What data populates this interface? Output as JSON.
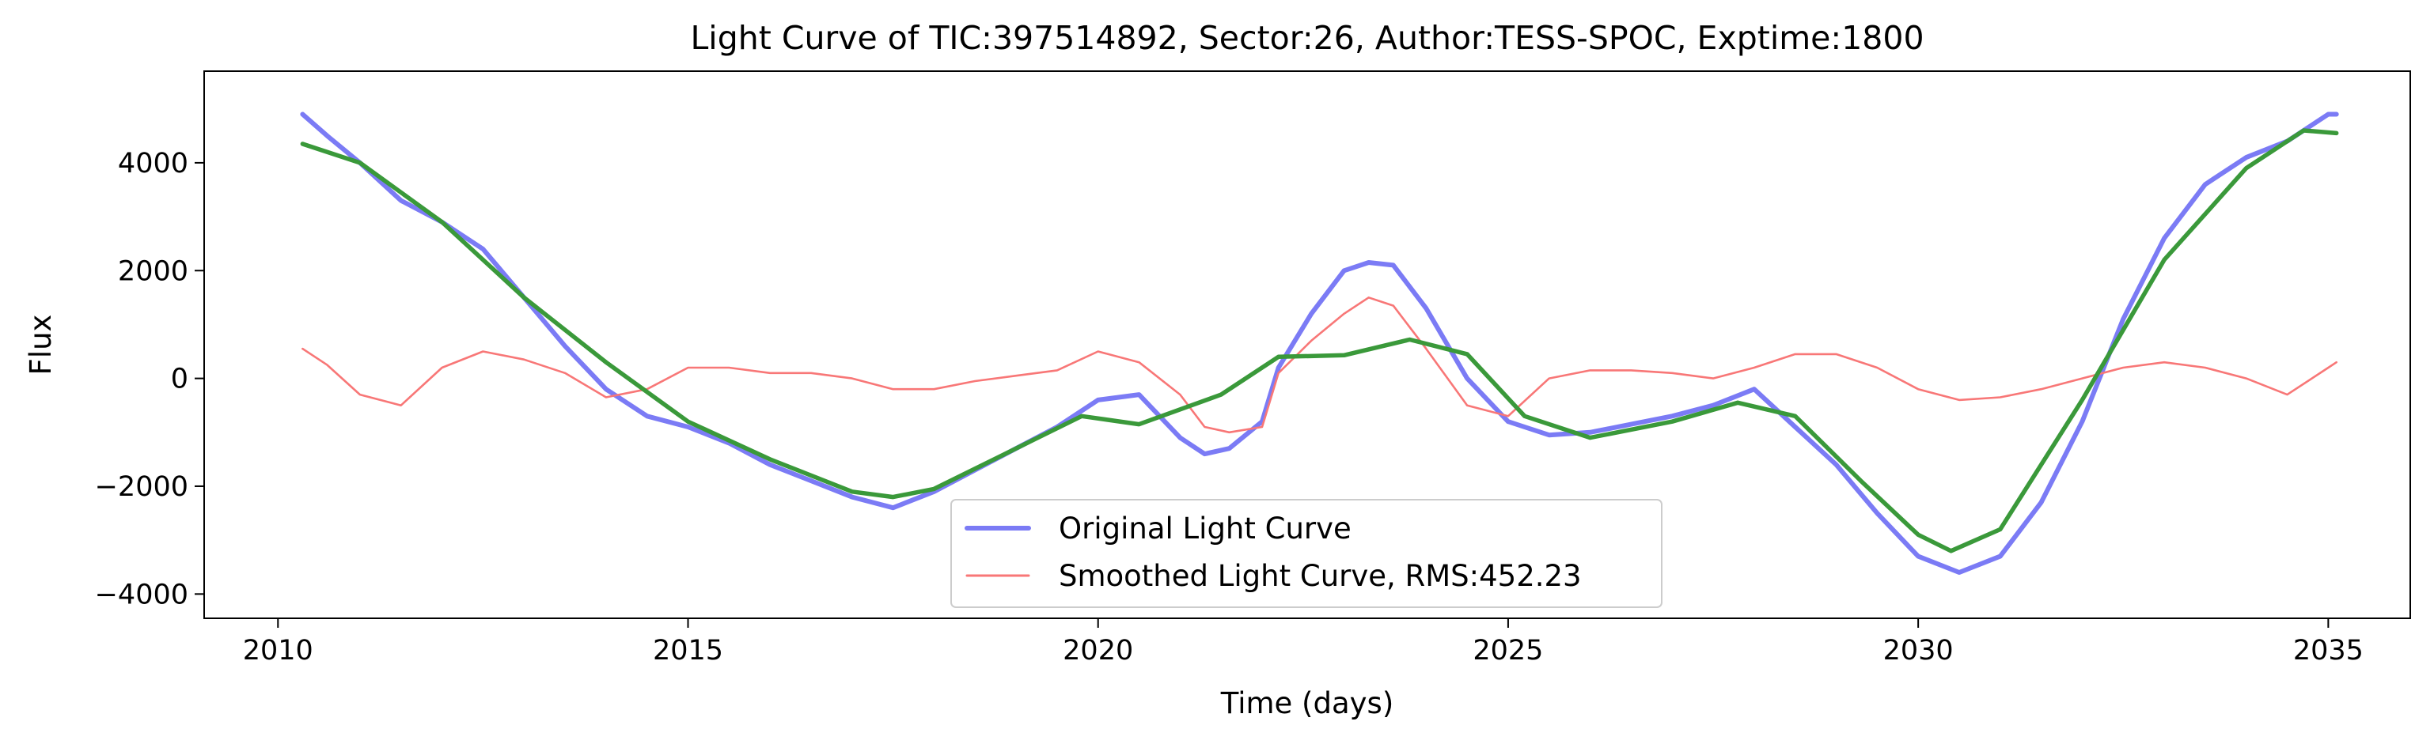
{
  "chart_data": {
    "type": "line",
    "title": "Light Curve of TIC:397514892, Sector:26, Author:TESS-SPOC, Exptime:1800",
    "xlabel": "Time (days)",
    "ylabel": "Flux",
    "xlim": [
      2009.1,
      2036.0
    ],
    "ylim": [
      -4450,
      5700
    ],
    "xticks": [
      2010,
      2015,
      2020,
      2025,
      2030,
      2035
    ],
    "yticks": [
      -4000,
      -2000,
      0,
      2000,
      4000
    ],
    "grid": false,
    "legend_position": "lower center",
    "series": [
      {
        "name": "Original Light Curve",
        "color": "#7b7bf5",
        "x": [
          2010.3,
          2010.6,
          2011.0,
          2011.5,
          2012.0,
          2012.5,
          2013.0,
          2013.5,
          2014.0,
          2014.5,
          2015.0,
          2015.5,
          2016.0,
          2016.5,
          2017.0,
          2017.5,
          2018.0,
          2018.5,
          2019.0,
          2019.5,
          2020.0,
          2020.5,
          2021.0,
          2021.3,
          2021.6,
          2022.0,
          2022.2,
          2022.6,
          2023.0,
          2023.3,
          2023.6,
          2024.0,
          2024.5,
          2025.0,
          2025.5,
          2026.0,
          2026.5,
          2027.0,
          2027.5,
          2028.0,
          2028.5,
          2029.0,
          2029.5,
          2030.0,
          2030.5,
          2031.0,
          2031.5,
          2032.0,
          2032.5,
          2033.0,
          2033.5,
          2034.0,
          2034.5,
          2035.0,
          2035.1
        ],
        "y": [
          4900,
          4500,
          4000,
          3300,
          2900,
          2400,
          1500,
          600,
          -200,
          -700,
          -900,
          -1200,
          -1600,
          -1900,
          -2200,
          -2400,
          -2100,
          -1700,
          -1300,
          -900,
          -400,
          -300,
          -1100,
          -1400,
          -1300,
          -800,
          200,
          1200,
          2000,
          2150,
          2100,
          1300,
          0,
          -800,
          -1050,
          -1000,
          -850,
          -700,
          -500,
          -200,
          -900,
          -1600,
          -2500,
          -3300,
          -3600,
          -3300,
          -2300,
          -800,
          1100,
          2600,
          3600,
          4100,
          4400,
          4900,
          4900
        ]
      },
      {
        "name": "Smoothed Light Curve, RMS:452.23",
        "color": "#f87777",
        "x": [
          2010.3,
          2010.6,
          2011.0,
          2011.5,
          2012.0,
          2012.5,
          2013.0,
          2013.5,
          2014.0,
          2014.5,
          2015.0,
          2015.5,
          2016.0,
          2016.5,
          2017.0,
          2017.5,
          2018.0,
          2018.5,
          2019.0,
          2019.5,
          2020.0,
          2020.5,
          2021.0,
          2021.3,
          2021.6,
          2022.0,
          2022.2,
          2022.6,
          2023.0,
          2023.3,
          2023.6,
          2024.0,
          2024.5,
          2025.0,
          2025.5,
          2026.0,
          2026.5,
          2027.0,
          2027.5,
          2028.0,
          2028.5,
          2029.0,
          2029.5,
          2030.0,
          2030.5,
          2031.0,
          2031.5,
          2032.0,
          2032.5,
          2033.0,
          2033.5,
          2034.0,
          2034.5,
          2035.0,
          2035.1
        ],
        "y": [
          550,
          250,
          -300,
          -500,
          200,
          500,
          350,
          100,
          -350,
          -200,
          200,
          200,
          100,
          100,
          0,
          -200,
          -200,
          -50,
          50,
          150,
          500,
          300,
          -300,
          -900,
          -1000,
          -900,
          100,
          700,
          1200,
          1500,
          1350,
          550,
          -500,
          -700,
          0,
          150,
          150,
          100,
          0,
          200,
          450,
          450,
          200,
          -200,
          -400,
          -350,
          -200,
          0,
          200,
          300,
          200,
          0,
          -300,
          200,
          300
        ]
      },
      {
        "name": "",
        "color": "#3a993a",
        "x": [
          2010.3,
          2011.0,
          2012.0,
          2013.0,
          2014.0,
          2015.0,
          2016.0,
          2017.0,
          2017.5,
          2018.0,
          2019.0,
          2019.8,
          2020.5,
          2021.5,
          2022.2,
          2023.0,
          2023.8,
          2024.5,
          2025.2,
          2026.0,
          2027.0,
          2027.8,
          2028.5,
          2029.3,
          2030.0,
          2030.4,
          2031.0,
          2032.0,
          2033.0,
          2034.0,
          2034.7,
          2035.1
        ],
        "y": [
          4350,
          4000,
          2900,
          1500,
          300,
          -800,
          -1500,
          -2100,
          -2200,
          -2050,
          -1300,
          -700,
          -850,
          -300,
          400,
          430,
          720,
          450,
          -700,
          -1100,
          -800,
          -450,
          -700,
          -1900,
          -2900,
          -3200,
          -2800,
          -400,
          2200,
          3900,
          4600,
          4550
        ]
      }
    ]
  }
}
